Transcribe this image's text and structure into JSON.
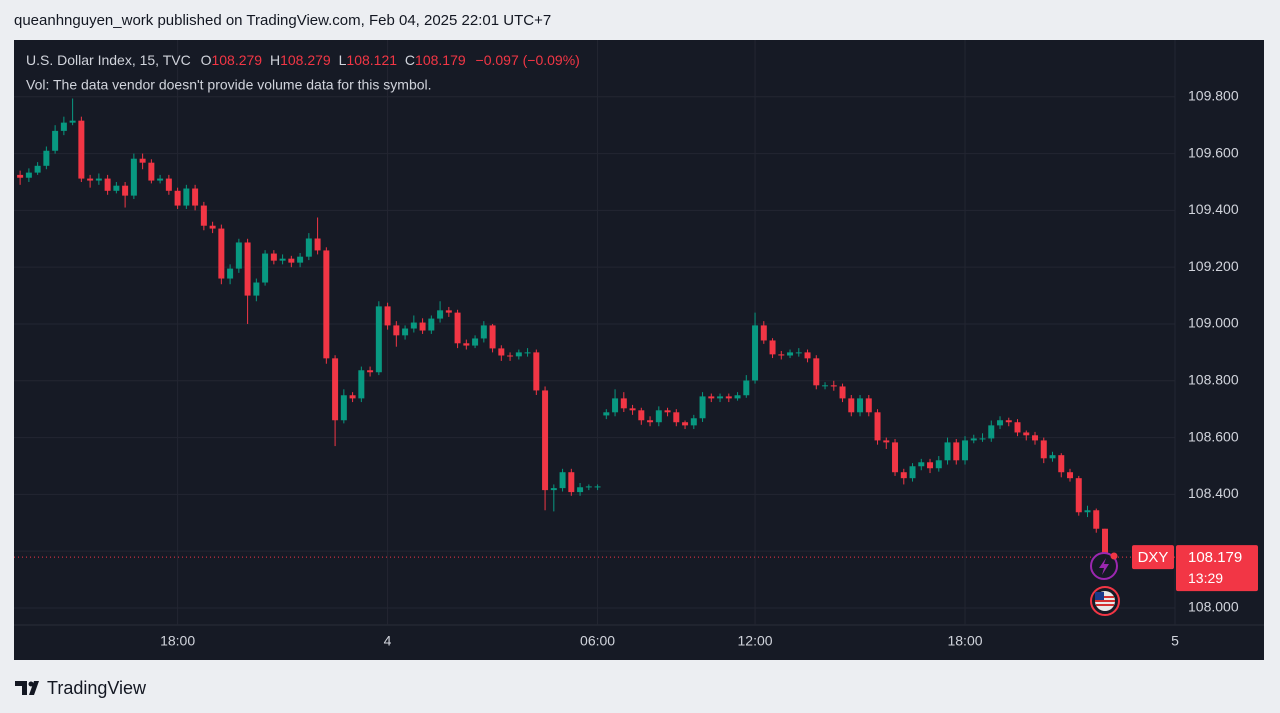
{
  "header": {
    "attribution": "queanhnguyen_work published on TradingView.com, Feb 04, 2025 22:01 UTC+7"
  },
  "footer": {
    "brand": "TradingView"
  },
  "chart_data": {
    "type": "candlestick",
    "title": "U.S. Dollar Index, 15, TVC",
    "ohlc_letters": {
      "open": "O",
      "high": "H",
      "low": "L",
      "close": "C"
    },
    "change": "−0.097 (−0.09%)",
    "note": "Vol: The data vendor doesn't provide volume data for this symbol.",
    "symbol_tag": "DXY",
    "countdown": "13:29",
    "up_color": "#089981",
    "down_color": "#f23645",
    "grid": true,
    "xlim": [
      -0.7,
      132
    ],
    "xticks": [
      {
        "value": 18,
        "label": "18:00"
      },
      {
        "value": 42,
        "label": "4"
      },
      {
        "value": 66,
        "label": "06:00"
      },
      {
        "value": 84,
        "label": "12:00"
      },
      {
        "value": 108,
        "label": "18:00"
      },
      {
        "value": 132,
        "label": "5"
      }
    ],
    "ylim": [
      107.94,
      110.0
    ],
    "yticks": [
      {
        "value": 108,
        "label": "108.000"
      },
      {
        "value": 108.2,
        "label": "108.200"
      },
      {
        "value": 108.4,
        "label": "108.400"
      },
      {
        "value": 108.6,
        "label": "108.600"
      },
      {
        "value": 108.8,
        "label": "108.800"
      },
      {
        "value": 109,
        "label": "109.000"
      },
      {
        "value": 109.2,
        "label": "109.200"
      },
      {
        "value": 109.4,
        "label": "109.400"
      },
      {
        "value": 109.6,
        "label": "109.600"
      },
      {
        "value": 109.8,
        "label": "109.800"
      }
    ],
    "ohlc": {
      "open": [
        109.525,
        109.515,
        109.533,
        109.557,
        109.61,
        109.68,
        109.709,
        109.716,
        109.512,
        109.505,
        109.512,
        109.469,
        109.487,
        109.452,
        109.582,
        109.568,
        109.505,
        109.512,
        109.469,
        109.417,
        109.477,
        109.417,
        109.346,
        109.336,
        109.16,
        109.195,
        109.287,
        109.1,
        109.146,
        109.248,
        109.223,
        109.23,
        109.216,
        109.237,
        109.301,
        109.259,
        108.879,
        108.661,
        108.749,
        108.738,
        108.837,
        108.83,
        109.062,
        108.995,
        108.96,
        108.984,
        109.005,
        108.977,
        109.019,
        109.048,
        109.04,
        108.932,
        108.924,
        108.949,
        108.995,
        108.914,
        108.889,
        108.886,
        108.9,
        108.9,
        108.766,
        108.415,
        108.422,
        108.478,
        108.408,
        108.425,
        108.428,
        108.678,
        108.689,
        108.738,
        108.703,
        108.696,
        108.661,
        108.654,
        108.696,
        108.689,
        108.654,
        108.643,
        108.668,
        108.745,
        108.738,
        108.745,
        108.738,
        108.749,
        108.801,
        108.995,
        108.942,
        108.893,
        108.889,
        108.9,
        108.9,
        108.879,
        108.784,
        108.784,
        108.78,
        108.738,
        108.689,
        108.738,
        108.689,
        108.59,
        108.583,
        108.478,
        108.457,
        108.499,
        108.513,
        108.492,
        108.52,
        108.583,
        108.52,
        108.59,
        108.597,
        108.597,
        108.643,
        108.661,
        108.654,
        108.618,
        108.608,
        108.59,
        108.527,
        108.538,
        108.478,
        108.457,
        108.337,
        108.344,
        108.279
      ],
      "high": [
        109.54,
        109.548,
        109.57,
        109.625,
        109.7,
        109.73,
        109.794,
        109.73,
        109.525,
        109.53,
        109.525,
        109.5,
        109.5,
        109.6,
        109.6,
        109.58,
        109.525,
        109.525,
        109.48,
        109.49,
        109.49,
        109.43,
        109.36,
        109.35,
        109.21,
        109.3,
        109.3,
        109.16,
        109.26,
        109.26,
        109.245,
        109.24,
        109.25,
        109.32,
        109.375,
        109.27,
        108.89,
        108.77,
        108.76,
        108.85,
        108.85,
        109.08,
        109.075,
        109.01,
        108.995,
        109.03,
        109.02,
        109.03,
        109.08,
        109.06,
        109.05,
        108.945,
        108.96,
        109.01,
        109.0,
        108.925,
        108.9,
        108.91,
        108.915,
        108.91,
        108.78,
        108.435,
        108.49,
        108.49,
        108.44,
        108.435,
        108.435,
        108.7,
        108.77,
        108.76,
        108.715,
        108.705,
        108.675,
        108.71,
        108.705,
        108.7,
        108.66,
        108.68,
        108.76,
        108.755,
        108.755,
        108.755,
        108.76,
        108.82,
        109.04,
        109.01,
        108.95,
        108.905,
        108.91,
        108.915,
        108.91,
        108.89,
        108.795,
        108.8,
        108.79,
        108.75,
        108.75,
        108.75,
        108.7,
        108.6,
        108.595,
        108.49,
        108.51,
        108.525,
        108.525,
        108.535,
        108.6,
        108.595,
        108.605,
        108.61,
        108.615,
        108.66,
        108.675,
        108.67,
        108.665,
        108.625,
        108.62,
        108.6,
        108.55,
        108.545,
        108.49,
        108.465,
        108.36,
        108.35,
        108.279
      ],
      "low": [
        109.49,
        109.5,
        109.525,
        109.545,
        109.6,
        109.665,
        109.7,
        109.5,
        109.48,
        109.49,
        109.455,
        109.46,
        109.41,
        109.44,
        109.545,
        109.495,
        109.495,
        109.455,
        109.405,
        109.405,
        109.4,
        109.33,
        109.32,
        109.14,
        109.14,
        109.18,
        109.0,
        109.08,
        109.135,
        109.21,
        109.21,
        109.2,
        109.2,
        109.225,
        109.245,
        108.86,
        108.57,
        108.65,
        108.725,
        108.725,
        108.815,
        108.82,
        108.98,
        108.92,
        108.945,
        108.97,
        108.965,
        108.965,
        109.005,
        109.025,
        108.915,
        108.91,
        108.915,
        108.935,
        108.9,
        108.87,
        108.87,
        108.875,
        108.885,
        108.75,
        108.344,
        108.34,
        108.41,
        108.395,
        108.395,
        108.415,
        108.415,
        108.665,
        108.675,
        108.69,
        108.68,
        108.645,
        108.64,
        108.64,
        108.675,
        108.64,
        108.63,
        108.63,
        108.655,
        108.725,
        108.725,
        108.725,
        108.73,
        108.74,
        108.79,
        108.93,
        108.88,
        108.875,
        108.88,
        108.885,
        108.865,
        108.77,
        108.77,
        108.765,
        108.725,
        108.675,
        108.675,
        108.675,
        108.575,
        108.56,
        108.465,
        108.435,
        108.445,
        108.485,
        108.475,
        108.48,
        108.505,
        108.505,
        108.505,
        108.58,
        108.585,
        108.585,
        108.63,
        108.64,
        108.605,
        108.59,
        108.575,
        108.51,
        108.515,
        108.46,
        108.445,
        108.325,
        108.32,
        108.265,
        108.121
      ],
      "close": [
        109.515,
        109.533,
        109.557,
        109.61,
        109.68,
        109.709,
        109.716,
        109.512,
        109.505,
        109.512,
        109.469,
        109.487,
        109.452,
        109.582,
        109.568,
        109.505,
        109.512,
        109.469,
        109.417,
        109.477,
        109.417,
        109.346,
        109.336,
        109.16,
        109.195,
        109.287,
        109.1,
        109.146,
        109.248,
        109.223,
        109.23,
        109.216,
        109.237,
        109.301,
        109.259,
        108.879,
        108.661,
        108.749,
        108.738,
        108.837,
        108.83,
        109.062,
        108.995,
        108.96,
        108.984,
        109.005,
        108.977,
        109.019,
        109.048,
        109.04,
        108.932,
        108.924,
        108.949,
        108.995,
        108.914,
        108.889,
        108.886,
        108.9,
        108.9,
        108.766,
        108.415,
        108.422,
        108.478,
        108.408,
        108.425,
        108.428,
        108.428,
        108.689,
        108.738,
        108.703,
        108.696,
        108.661,
        108.654,
        108.696,
        108.689,
        108.654,
        108.643,
        108.668,
        108.745,
        108.738,
        108.745,
        108.738,
        108.749,
        108.801,
        108.995,
        108.942,
        108.893,
        108.889,
        108.9,
        108.9,
        108.879,
        108.784,
        108.784,
        108.78,
        108.738,
        108.689,
        108.738,
        108.689,
        108.59,
        108.583,
        108.478,
        108.457,
        108.499,
        108.513,
        108.492,
        108.52,
        108.583,
        108.52,
        108.59,
        108.597,
        108.597,
        108.643,
        108.661,
        108.654,
        108.618,
        108.608,
        108.59,
        108.527,
        108.538,
        108.478,
        108.457,
        108.337,
        108.344,
        108.279,
        108.179
      ]
    }
  }
}
